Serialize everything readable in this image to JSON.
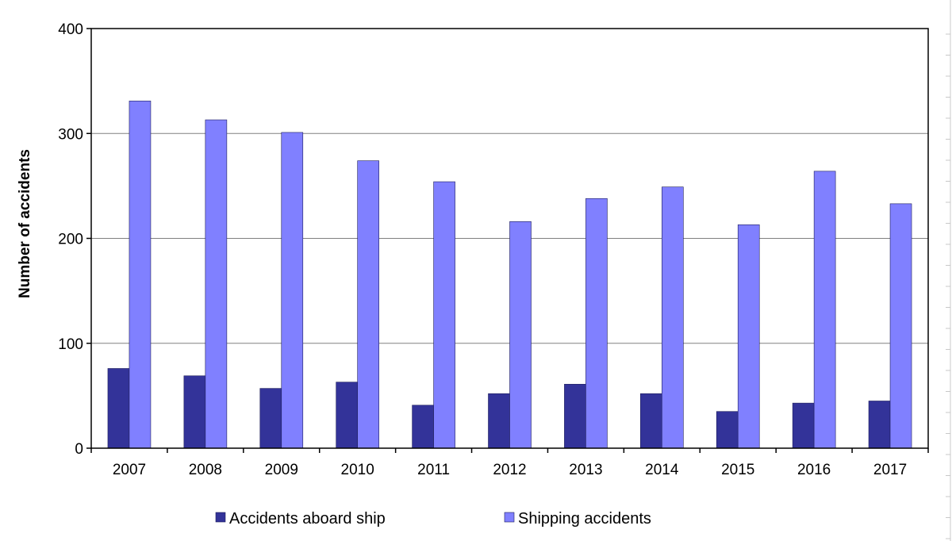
{
  "chart_data": {
    "type": "bar",
    "title": "",
    "xlabel": "",
    "ylabel": "Number of accidents",
    "ylim": [
      0,
      400
    ],
    "yticks": [
      0,
      100,
      200,
      300,
      400
    ],
    "grid": true,
    "legend_position": "bottom",
    "categories": [
      "2007",
      "2008",
      "2009",
      "2010",
      "2011",
      "2012",
      "2013",
      "2014",
      "2015",
      "2016",
      "2017"
    ],
    "series": [
      {
        "name": "Accidents aboard ship",
        "color": "#333399",
        "values": [
          76,
          69,
          57,
          63,
          41,
          52,
          61,
          52,
          35,
          43,
          45
        ]
      },
      {
        "name": "Shipping accidents",
        "color": "#8080ff",
        "values": [
          331,
          313,
          301,
          274,
          254,
          216,
          238,
          249,
          213,
          264,
          233
        ]
      }
    ]
  }
}
